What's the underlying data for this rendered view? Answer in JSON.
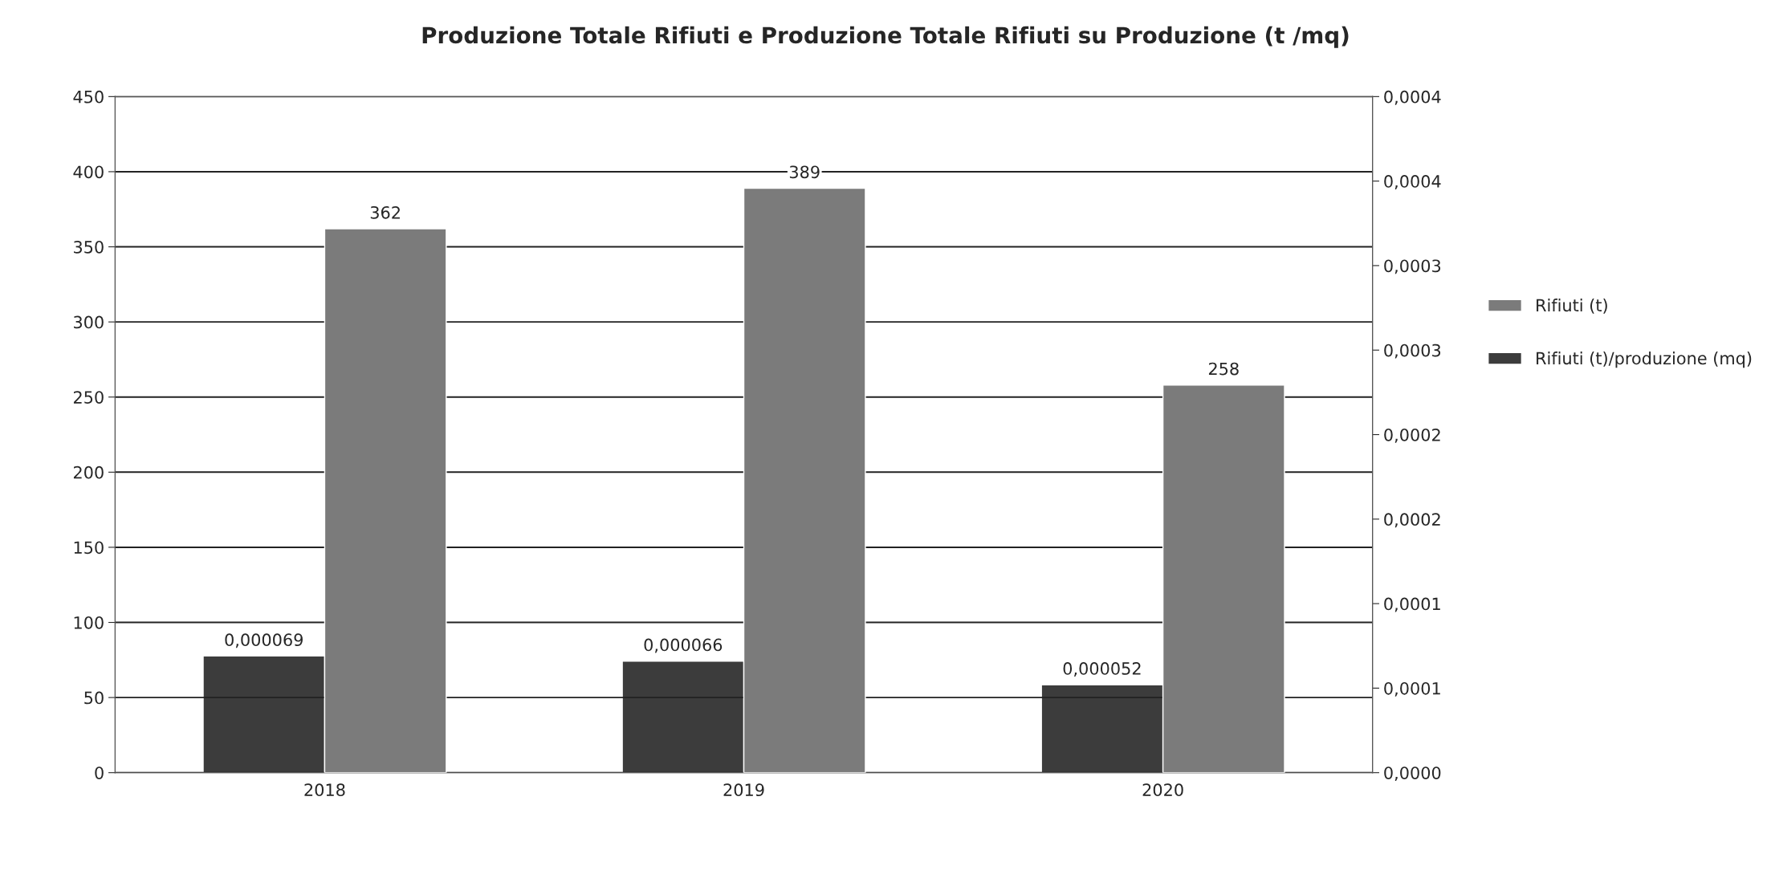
{
  "chart_data": {
    "type": "bar",
    "title": "Produzione Totale Rifiuti e Produzione Totale Rifiuti su Produzione (t /mq)",
    "categories": [
      "2018",
      "2019",
      "2020"
    ],
    "series": [
      {
        "name": "Rifiuti (t)/produzione (mq)",
        "color": "#3c3c3c",
        "values": [
          6.9e-05,
          6.6e-05,
          5.2e-05
        ],
        "axis": "y2",
        "value_labels": [
          "0,000069",
          "0,000066",
          "0,000052"
        ]
      },
      {
        "name": "Rifiuti (t)",
        "color": "#7b7b7b",
        "values": [
          362,
          389,
          258
        ],
        "value_labels": [
          "362",
          "389",
          "258"
        ]
      }
    ],
    "ylim": [
      0,
      450
    ],
    "yticks": [
      0,
      50,
      100,
      150,
      200,
      250,
      300,
      350,
      400,
      450
    ],
    "y2lim": [
      0,
      0.0004
    ],
    "y2ticks": [
      {
        "value": 0,
        "label": "0,0000"
      },
      {
        "value": 5e-05,
        "label": "0,0001"
      },
      {
        "value": 0.0001,
        "label": "0,0001"
      },
      {
        "value": 0.00015,
        "label": "0,0002"
      },
      {
        "value": 0.0002,
        "label": "0,0002"
      },
      {
        "value": 0.00025,
        "label": "0,0003"
      },
      {
        "value": 0.0003,
        "label": "0,0003"
      },
      {
        "value": 0.00035,
        "label": "0,0004"
      },
      {
        "value": 0.0004,
        "label": "0,0004"
      }
    ],
    "grid": "y",
    "legend": "right"
  }
}
